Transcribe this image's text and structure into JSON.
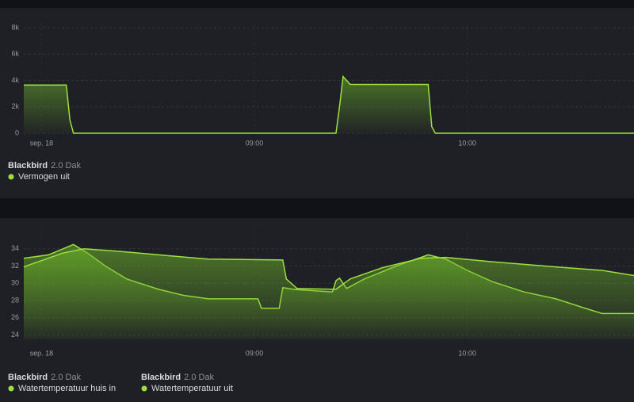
{
  "chart_data": [
    {
      "type": "area",
      "grid": true,
      "xlim": [
        475,
        647
      ],
      "xticks": [
        {
          "value": 480,
          "label": "sep. 18"
        },
        {
          "value": 540,
          "label": "09:00"
        },
        {
          "value": 600,
          "label": "10:00"
        }
      ],
      "ylim": [
        0,
        8000
      ],
      "yticks": [
        0,
        {
          "value": 2000,
          "label": "2k"
        },
        {
          "value": 4000,
          "label": "4k"
        },
        {
          "value": 6000,
          "label": "6k"
        },
        {
          "value": 8000,
          "label": "8k"
        }
      ],
      "series": [
        {
          "name": "Vermogen uit",
          "group": "Blackbird",
          "group_sub": "2.0 Dak",
          "color": "#9ee03c",
          "x": [
            475,
            487,
            488,
            489,
            563,
            564,
            565,
            567,
            589,
            590,
            591,
            647
          ],
          "values": [
            3650,
            3650,
            1000,
            0,
            0,
            2000,
            4300,
            3700,
            3700,
            500,
            0,
            0
          ]
        }
      ]
    },
    {
      "type": "area",
      "grid": true,
      "xlim": [
        475,
        647
      ],
      "xticks": [
        {
          "value": 480,
          "label": "sep. 18"
        },
        {
          "value": 540,
          "label": "09:00"
        },
        {
          "value": 600,
          "label": "10:00"
        }
      ],
      "ylim": [
        23.5,
        36
      ],
      "yticks": [
        24,
        26,
        28,
        30,
        32,
        34
      ],
      "series": [
        {
          "name": "Watertemperatuur huis in",
          "group": "Blackbird",
          "group_sub": "2.0 Dak",
          "color": "#9ee03c",
          "x": [
            475,
            482,
            489,
            493,
            498,
            504,
            513,
            520,
            527,
            541,
            542,
            547,
            548,
            551,
            562,
            563,
            564,
            566,
            571,
            580,
            589,
            594,
            600,
            607,
            616,
            625,
            634,
            638,
            647
          ],
          "values": [
            32.9,
            33.3,
            34.5,
            33.5,
            32,
            30.5,
            29.3,
            28.6,
            28.2,
            28.2,
            27.1,
            27.1,
            29.5,
            29.3,
            29,
            30.3,
            30.6,
            29.4,
            30.5,
            32,
            33.3,
            32.8,
            31.5,
            30.2,
            29,
            28.2,
            27,
            26.5,
            26.5
          ]
        },
        {
          "name": "Watertemperatuur uit",
          "group": "Blackbird",
          "group_sub": "2.0 Dak",
          "color": "#9ee03c",
          "x": [
            475,
            486,
            492,
            502,
            513,
            527,
            548,
            549,
            552,
            563,
            564,
            567,
            576,
            587,
            594,
            607,
            625,
            638,
            647
          ],
          "values": [
            31.9,
            33.5,
            34,
            33.7,
            33.3,
            32.8,
            32.7,
            30.5,
            29.4,
            29.3,
            29.6,
            30.5,
            31.8,
            32.9,
            33,
            32.5,
            31.9,
            31.5,
            30.9
          ]
        }
      ]
    }
  ]
}
